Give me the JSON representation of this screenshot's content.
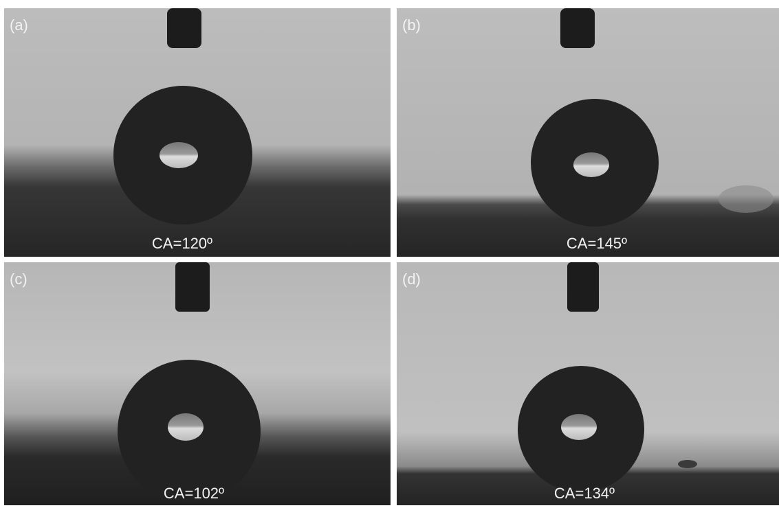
{
  "panels": [
    {
      "tag": "(a)",
      "caption": "CA=120º"
    },
    {
      "tag": "(b)",
      "caption": "CA=145º"
    },
    {
      "tag": "(c)",
      "caption": "CA=102º"
    },
    {
      "tag": "(d)",
      "caption": "CA=134º"
    }
  ]
}
